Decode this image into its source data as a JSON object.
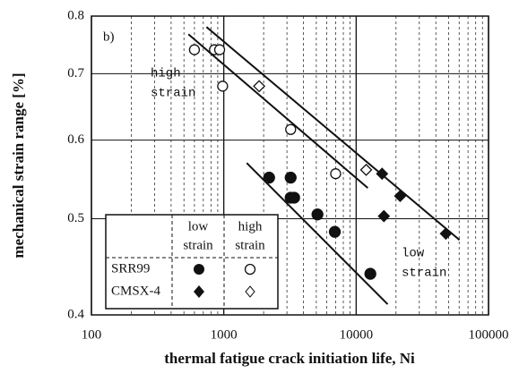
{
  "chart_data": {
    "type": "scatter",
    "panel_label": "b)",
    "x_label": "thermal fatigue crack initiation life, Ni",
    "y_label": "mechanical strain range  [%]",
    "log_x": true,
    "log_y": true,
    "xlim": [
      100,
      100000
    ],
    "xticks": [
      100,
      1000,
      10000,
      100000
    ],
    "ylim": [
      0.4,
      0.8
    ],
    "yticks": [
      0.4,
      0.5,
      0.6,
      0.7,
      0.8
    ],
    "series": [
      {
        "marker": "circle",
        "filled": true,
        "x": [
          2200,
          3200,
          3200,
          3400,
          5100,
          6900,
          12800
        ],
        "values": [
          0.55,
          0.55,
          0.525,
          0.525,
          0.505,
          0.485,
          0.44
        ]
      },
      {
        "marker": "circle",
        "filled": false,
        "x": [
          600,
          850,
          930,
          980,
          3200,
          7000
        ],
        "values": [
          0.74,
          0.74,
          0.74,
          0.68,
          0.615,
          0.555
        ]
      },
      {
        "marker": "diamond",
        "filled": true,
        "x": [
          15700,
          21500,
          16200,
          47600
        ],
        "values": [
          0.555,
          0.527,
          0.503,
          0.483
        ]
      },
      {
        "marker": "diamond",
        "filled": false,
        "x": [
          1850,
          11900
        ],
        "values": [
          0.68,
          0.56
        ]
      }
    ],
    "fit_lines": [
      {
        "x": [
          540,
          12250
        ],
        "values": [
          0.767,
          0.537
        ]
      },
      {
        "x": [
          740,
          60300
        ],
        "values": [
          0.78,
          0.476
        ]
      },
      {
        "x": [
          1490,
          17300
        ],
        "values": [
          0.569,
          0.41
        ]
      }
    ],
    "annotations": [
      [
        "high",
        "strain"
      ],
      [
        "low",
        "strain"
      ]
    ],
    "legend": {
      "columns": [
        [
          "low",
          "strain"
        ],
        [
          "high",
          "strain"
        ]
      ],
      "rows": [
        "SRR99",
        "CMSX-4"
      ]
    }
  }
}
